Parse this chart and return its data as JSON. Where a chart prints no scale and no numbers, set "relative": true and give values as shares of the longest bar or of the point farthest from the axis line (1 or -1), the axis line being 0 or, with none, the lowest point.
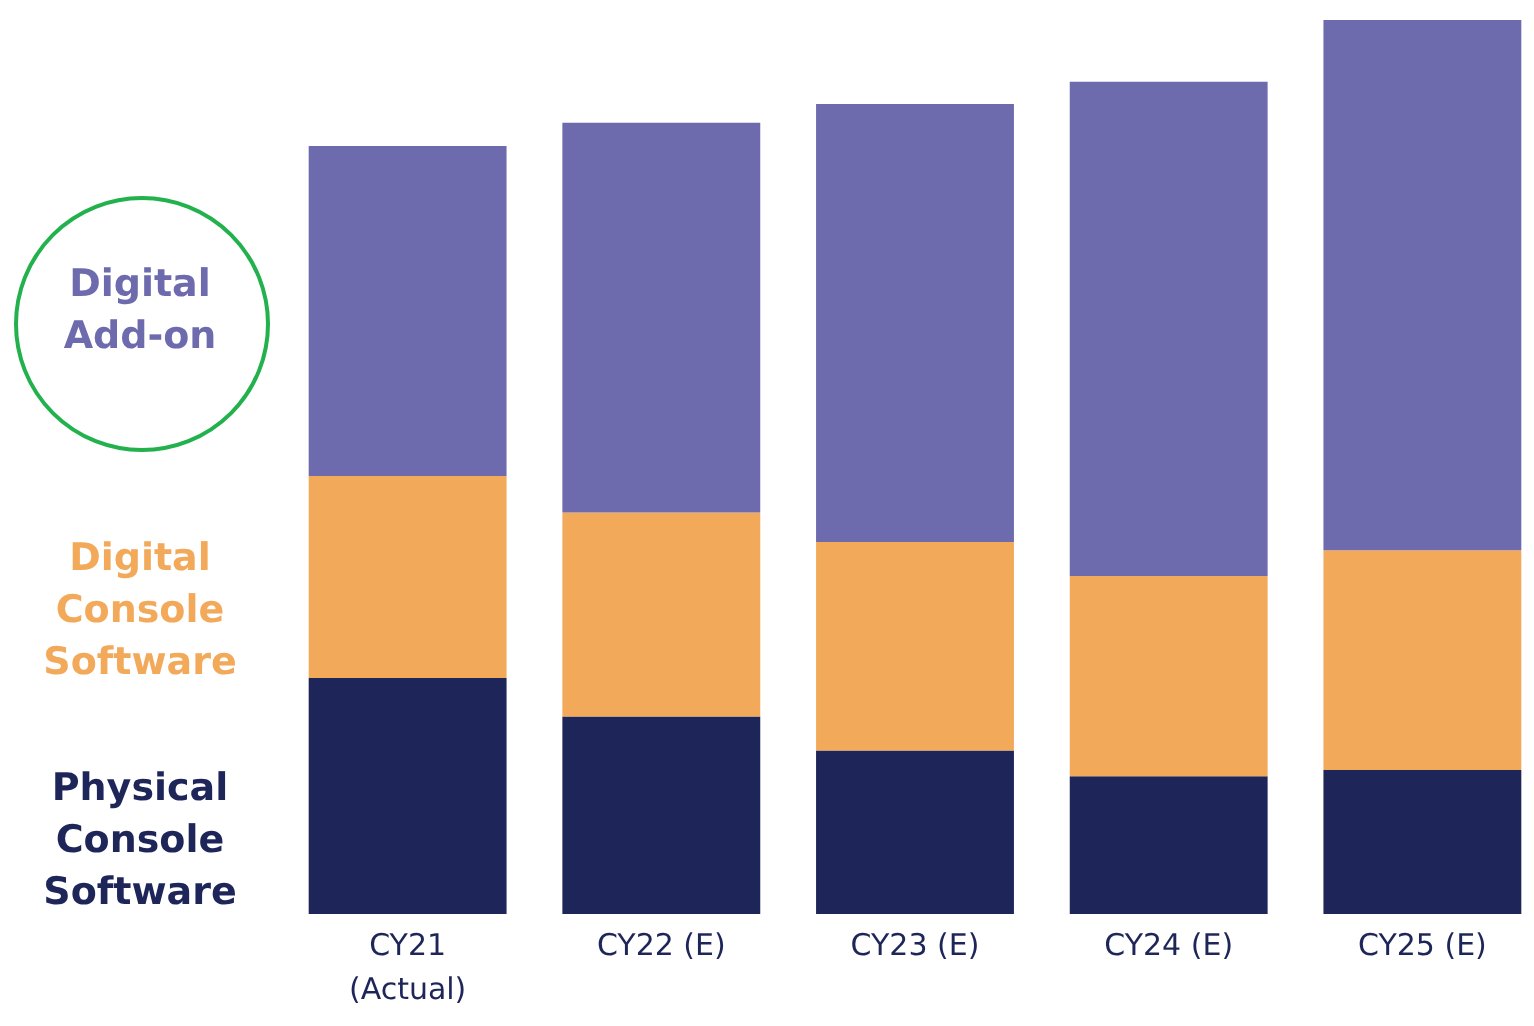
{
  "chart_data": {
    "type": "bar",
    "stacked": true,
    "relative": true,
    "categories": [
      "CY21\n(Actual)",
      "CY22 (E)",
      "CY23 (E)",
      "CY24 (E)",
      "CY25 (E)"
    ],
    "series": [
      {
        "name": "Physical Console Software",
        "color": "#1e2558",
        "values": [
          0.264,
          0.221,
          0.183,
          0.154,
          0.161
        ]
      },
      {
        "name": "Digital Console Software",
        "color": "#f2a95a",
        "values": [
          0.226,
          0.228,
          0.233,
          0.224,
          0.246
        ]
      },
      {
        "name": "Digital Add-on",
        "color": "#6e6aae",
        "values": [
          0.369,
          0.436,
          0.49,
          0.553,
          0.593
        ]
      }
    ]
  }
}
